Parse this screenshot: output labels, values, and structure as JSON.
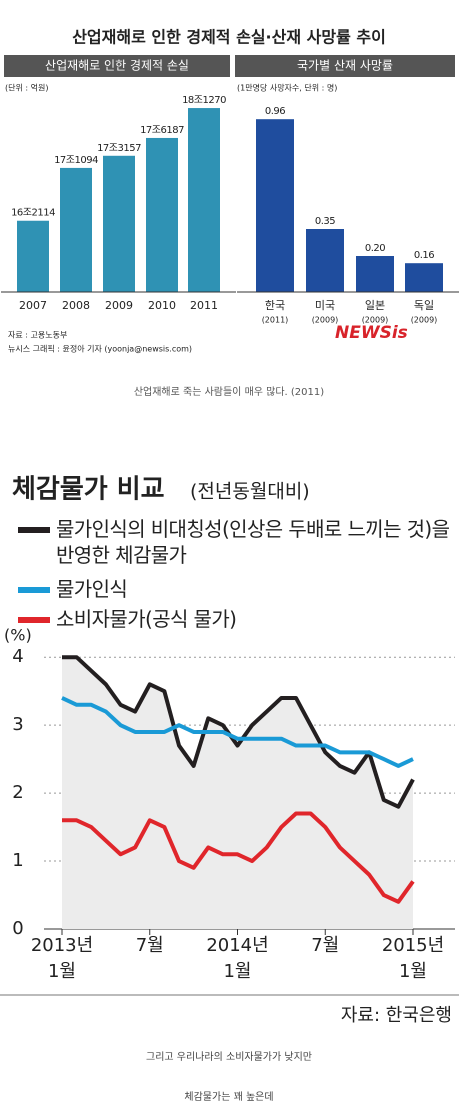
{
  "header": {
    "title": "산업재해로 인한 경제적 손실·산재 사망률 추이",
    "caption": "산업재해로 죽는 사람들이 매우 많다. (2011)"
  },
  "chart_data": [
    {
      "type": "bar",
      "title": "산업재해로 인한 경제적 손실",
      "unit": "(단위 : 억원)",
      "categories": [
        "2007",
        "2008",
        "2009",
        "2010",
        "2011"
      ],
      "values": [
        162114,
        171094,
        173157,
        176187,
        181270
      ],
      "value_labels": [
        "16조2114",
        "17조1094",
        "17조3157",
        "17조6187",
        "18조1270"
      ],
      "color": "#2f92b4",
      "ylim": [
        150000,
        184000
      ]
    },
    {
      "type": "bar",
      "title": "국가별 산재 사망률",
      "unit": "(1만명당 사망자수, 단위 : 명)",
      "categories": [
        "한국",
        "미국",
        "일본",
        "독일"
      ],
      "category_notes": [
        "(2011)",
        "(2009)",
        "(2009)",
        "(2009)"
      ],
      "values": [
        0.96,
        0.35,
        0.2,
        0.16
      ],
      "value_labels": [
        "0.96",
        "0.35",
        "0.20",
        "0.16"
      ],
      "color": "#1f4d9e",
      "ylim": [
        0,
        1
      ]
    },
    {
      "type": "line",
      "title": "체감물가 비교",
      "subtitle": "(전년동월대비)",
      "ylabel": "(%)",
      "categories": [
        "2013년\n1월",
        null,
        null,
        null,
        null,
        null,
        "7월",
        null,
        null,
        null,
        null,
        null,
        "2014년\n1월",
        null,
        null,
        null,
        null,
        null,
        "7월",
        null,
        null,
        null,
        null,
        null,
        "2015년\n1월"
      ],
      "series": [
        {
          "name": "물가인식의 비대칭성(인상은 두배로 느끼는 것)을 반영한 체감물가",
          "color": "#231f20",
          "values": [
            4.0,
            4.0,
            3.8,
            3.6,
            3.3,
            3.2,
            3.6,
            3.5,
            2.7,
            2.4,
            3.1,
            3.0,
            2.7,
            3.0,
            3.2,
            3.4,
            3.4,
            3.0,
            2.6,
            2.4,
            2.3,
            2.6,
            1.9,
            1.8,
            2.2
          ]
        },
        {
          "name": "물가인식",
          "color": "#1a9ad6",
          "values": [
            3.4,
            3.3,
            3.3,
            3.2,
            3.0,
            2.9,
            2.9,
            2.9,
            3.0,
            2.9,
            2.9,
            2.9,
            2.8,
            2.8,
            2.8,
            2.8,
            2.7,
            2.7,
            2.7,
            2.6,
            2.6,
            2.6,
            2.5,
            2.4,
            2.5
          ]
        },
        {
          "name": "소비자물가(공식 물가)",
          "color": "#e0262b",
          "values": [
            1.6,
            1.6,
            1.5,
            1.3,
            1.1,
            1.2,
            1.6,
            1.5,
            1.0,
            0.9,
            1.2,
            1.1,
            1.1,
            1.0,
            1.2,
            1.5,
            1.7,
            1.7,
            1.5,
            1.2,
            1.0,
            0.8,
            0.5,
            0.4,
            0.7
          ]
        }
      ],
      "ylim": [
        0,
        4.15
      ],
      "yticks": [
        0,
        1,
        2,
        3,
        4
      ],
      "grid": true
    }
  ],
  "sources": [
    "자료 : 고용노동부",
    "뉴시스 그래픽 : 윤정아 기자 (yoonja@newsis.com)"
  ],
  "logo": "NEWSis",
  "line_source": "자료: 한국은행",
  "footer": [
    "그리고 우리나라의 소비자물가가 낮지만",
    "체감물가는 꽤 높은데"
  ]
}
